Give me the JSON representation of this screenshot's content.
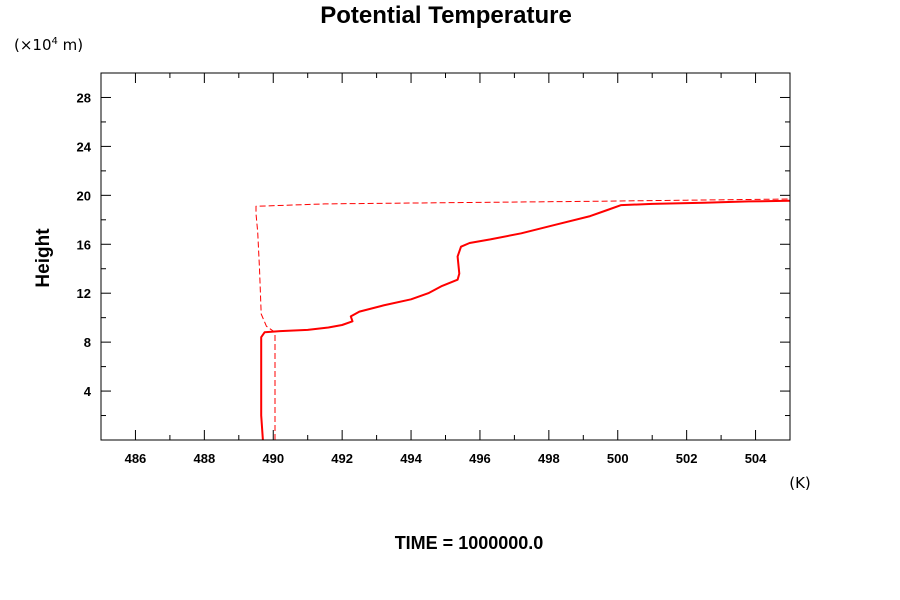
{
  "chart_data": {
    "type": "line",
    "title": "Potential Temperature",
    "ylabel": "Height",
    "y_unit_prefix": "(×10",
    "y_unit_exp": "4",
    "y_unit_suffix": " m)",
    "x_unit": "(K)",
    "xlim": [
      485,
      505
    ],
    "ylim": [
      0,
      30
    ],
    "x_ticks": [
      486,
      488,
      490,
      492,
      494,
      496,
      498,
      500,
      502,
      504
    ],
    "x_minor_ticks": [
      485,
      487,
      489,
      491,
      493,
      495,
      497,
      499,
      501,
      503,
      505
    ],
    "y_ticks": [
      4,
      8,
      12,
      16,
      20,
      24,
      28
    ],
    "y_minor_ticks": [
      2,
      6,
      10,
      14,
      18,
      22,
      26,
      30
    ],
    "grid": false,
    "colors": {
      "series": "#ff0000",
      "axes": "#000000"
    },
    "series": [
      {
        "style": "solid",
        "points": [
          [
            489.7,
            0.0
          ],
          [
            489.65,
            2.0
          ],
          [
            489.65,
            5.0
          ],
          [
            489.65,
            8.4
          ],
          [
            489.75,
            8.8
          ],
          [
            490.2,
            8.9
          ],
          [
            491.0,
            9.0
          ],
          [
            491.6,
            9.2
          ],
          [
            492.0,
            9.4
          ],
          [
            492.3,
            9.7
          ],
          [
            492.25,
            10.1
          ],
          [
            492.5,
            10.5
          ],
          [
            493.2,
            11.0
          ],
          [
            494.0,
            11.5
          ],
          [
            494.5,
            12.0
          ],
          [
            494.9,
            12.6
          ],
          [
            495.35,
            13.1
          ],
          [
            495.4,
            13.6
          ],
          [
            495.35,
            15.0
          ],
          [
            495.45,
            15.8
          ],
          [
            495.7,
            16.1
          ],
          [
            496.3,
            16.4
          ],
          [
            497.2,
            16.9
          ],
          [
            498.2,
            17.6
          ],
          [
            499.2,
            18.3
          ],
          [
            499.7,
            18.8
          ],
          [
            500.1,
            19.2
          ],
          [
            501.0,
            19.3
          ],
          [
            502.5,
            19.4
          ],
          [
            503.8,
            19.5
          ],
          [
            505.0,
            19.55
          ]
        ]
      },
      {
        "style": "dashed",
        "points": [
          [
            490.05,
            0.0
          ],
          [
            490.05,
            8.8
          ],
          [
            489.8,
            9.3
          ],
          [
            489.65,
            10.3
          ],
          [
            489.6,
            14.0
          ],
          [
            489.55,
            17.0
          ],
          [
            489.5,
            18.5
          ],
          [
            489.5,
            19.1
          ],
          [
            491.5,
            19.3
          ],
          [
            495.0,
            19.4
          ],
          [
            499.0,
            19.5
          ],
          [
            502.0,
            19.6
          ],
          [
            505.0,
            19.7
          ]
        ]
      }
    ],
    "footer": "TIME = 1000000.0"
  }
}
